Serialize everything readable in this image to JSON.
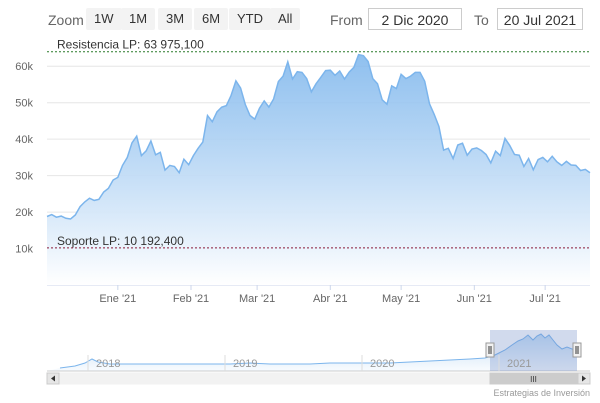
{
  "toolbar": {
    "zoom_label": "Zoom",
    "zoom_buttons": [
      "1W",
      "1M",
      "3M",
      "6M",
      "YTD",
      "All"
    ],
    "from_label": "From",
    "from_value": "2 Dic 2020",
    "to_label": "To",
    "to_value": "20 Jul 2021"
  },
  "credits": "Estrategias de Inversión",
  "colors": {
    "line": "#7cb5ec",
    "area_top": "#7cb5ec",
    "area_bottom": "#ffffff",
    "resistance": "#2a7a2a",
    "support": "#8b1a3a",
    "grid": "#e6e6e6"
  },
  "chart_data": {
    "type": "area",
    "ylim": [
      0,
      65000
    ],
    "y_ticks": [
      10000,
      20000,
      30000,
      40000,
      50000,
      60000
    ],
    "y_tick_labels": [
      "10k",
      "20k",
      "30k",
      "40k",
      "50k",
      "60k"
    ],
    "x_ticks": [
      {
        "date": "2021-01-01",
        "label": "Ene '21"
      },
      {
        "date": "2021-02-01",
        "label": "Feb '21"
      },
      {
        "date": "2021-03-01",
        "label": "Mar '21"
      },
      {
        "date": "2021-04-01",
        "label": "Abr '21"
      },
      {
        "date": "2021-05-01",
        "label": "May '21"
      },
      {
        "date": "2021-06-01",
        "label": "Jun '21"
      },
      {
        "date": "2021-07-01",
        "label": "Jul '21"
      }
    ],
    "x_range": [
      "2020-12-02",
      "2021-07-20"
    ],
    "plot_lines": [
      {
        "label": "Resistencia LP: 63 975,100",
        "value": 63975.1
      },
      {
        "label": "Soporte LP: 10 192,400",
        "value": 10192.4
      }
    ],
    "series": [
      {
        "values": [
          [
            "2020-12-02",
            18800
          ],
          [
            "2020-12-04",
            19300
          ],
          [
            "2020-12-06",
            18600
          ],
          [
            "2020-12-08",
            18900
          ],
          [
            "2020-12-10",
            18300
          ],
          [
            "2020-12-12",
            18100
          ],
          [
            "2020-12-14",
            19200
          ],
          [
            "2020-12-16",
            21500
          ],
          [
            "2020-12-18",
            22800
          ],
          [
            "2020-12-20",
            23800
          ],
          [
            "2020-12-22",
            23200
          ],
          [
            "2020-12-24",
            23500
          ],
          [
            "2020-12-26",
            25500
          ],
          [
            "2020-12-28",
            26500
          ],
          [
            "2020-12-30",
            28800
          ],
          [
            "2021-01-01",
            29500
          ],
          [
            "2021-01-03",
            32800
          ],
          [
            "2021-01-05",
            35000
          ],
          [
            "2021-01-07",
            39000
          ],
          [
            "2021-01-09",
            40800
          ],
          [
            "2021-01-11",
            35500
          ],
          [
            "2021-01-13",
            36800
          ],
          [
            "2021-01-15",
            39500
          ],
          [
            "2021-01-17",
            35700
          ],
          [
            "2021-01-19",
            36400
          ],
          [
            "2021-01-21",
            31500
          ],
          [
            "2021-01-23",
            32800
          ],
          [
            "2021-01-25",
            32500
          ],
          [
            "2021-01-27",
            30800
          ],
          [
            "2021-01-29",
            34500
          ],
          [
            "2021-01-31",
            33000
          ],
          [
            "2021-02-02",
            35500
          ],
          [
            "2021-02-04",
            37500
          ],
          [
            "2021-02-06",
            39200
          ],
          [
            "2021-02-08",
            46500
          ],
          [
            "2021-02-10",
            44800
          ],
          [
            "2021-02-12",
            47500
          ],
          [
            "2021-02-14",
            48800
          ],
          [
            "2021-02-16",
            49200
          ],
          [
            "2021-02-18",
            52000
          ],
          [
            "2021-02-20",
            56000
          ],
          [
            "2021-02-22",
            54000
          ],
          [
            "2021-02-24",
            49500
          ],
          [
            "2021-02-26",
            46500
          ],
          [
            "2021-02-28",
            45500
          ],
          [
            "2021-03-02",
            48500
          ],
          [
            "2021-03-04",
            50500
          ],
          [
            "2021-03-06",
            48800
          ],
          [
            "2021-03-08",
            51000
          ],
          [
            "2021-03-10",
            55800
          ],
          [
            "2021-03-12",
            57300
          ],
          [
            "2021-03-14",
            61200
          ],
          [
            "2021-03-16",
            56500
          ],
          [
            "2021-03-18",
            58500
          ],
          [
            "2021-03-20",
            58300
          ],
          [
            "2021-03-22",
            56600
          ],
          [
            "2021-03-24",
            53000
          ],
          [
            "2021-03-26",
            55200
          ],
          [
            "2021-03-28",
            57000
          ],
          [
            "2021-03-30",
            58800
          ],
          [
            "2021-04-01",
            58900
          ],
          [
            "2021-04-03",
            57500
          ],
          [
            "2021-04-05",
            58700
          ],
          [
            "2021-04-07",
            56500
          ],
          [
            "2021-04-09",
            58400
          ],
          [
            "2021-04-11",
            59700
          ],
          [
            "2021-04-13",
            63200
          ],
          [
            "2021-04-15",
            62900
          ],
          [
            "2021-04-17",
            61300
          ],
          [
            "2021-04-19",
            56600
          ],
          [
            "2021-04-21",
            55200
          ],
          [
            "2021-04-23",
            50800
          ],
          [
            "2021-04-25",
            49600
          ],
          [
            "2021-04-27",
            54600
          ],
          [
            "2021-04-29",
            53900
          ],
          [
            "2021-05-01",
            57800
          ],
          [
            "2021-05-03",
            56600
          ],
          [
            "2021-05-05",
            57300
          ],
          [
            "2021-05-07",
            58300
          ],
          [
            "2021-05-09",
            58300
          ],
          [
            "2021-05-11",
            55900
          ],
          [
            "2021-05-13",
            49700
          ],
          [
            "2021-05-15",
            46800
          ],
          [
            "2021-05-17",
            43500
          ],
          [
            "2021-05-19",
            37000
          ],
          [
            "2021-05-21",
            37500
          ],
          [
            "2021-05-23",
            34700
          ],
          [
            "2021-05-25",
            38400
          ],
          [
            "2021-05-27",
            38900
          ],
          [
            "2021-05-29",
            35600
          ],
          [
            "2021-05-31",
            37300
          ],
          [
            "2021-06-02",
            37600
          ],
          [
            "2021-06-04",
            36900
          ],
          [
            "2021-06-06",
            35800
          ],
          [
            "2021-06-08",
            33500
          ],
          [
            "2021-06-10",
            36700
          ],
          [
            "2021-06-12",
            35500
          ],
          [
            "2021-06-14",
            40200
          ],
          [
            "2021-06-16",
            38300
          ],
          [
            "2021-06-18",
            35800
          ],
          [
            "2021-06-20",
            35600
          ],
          [
            "2021-06-22",
            32500
          ],
          [
            "2021-06-24",
            34700
          ],
          [
            "2021-06-26",
            31600
          ],
          [
            "2021-06-28",
            34400
          ],
          [
            "2021-06-30",
            35000
          ],
          [
            "2021-07-02",
            33800
          ],
          [
            "2021-07-04",
            35300
          ],
          [
            "2021-07-06",
            33800
          ],
          [
            "2021-07-08",
            32800
          ],
          [
            "2021-07-10",
            33900
          ],
          [
            "2021-07-12",
            32900
          ],
          [
            "2021-07-14",
            32800
          ],
          [
            "2021-07-16",
            31400
          ],
          [
            "2021-07-18",
            31700
          ],
          [
            "2021-07-20",
            30800
          ]
        ]
      }
    ]
  },
  "navigator": {
    "labels": [
      "2018",
      "2019",
      "2020",
      "2021"
    ],
    "scrollbar_grip": "III"
  }
}
